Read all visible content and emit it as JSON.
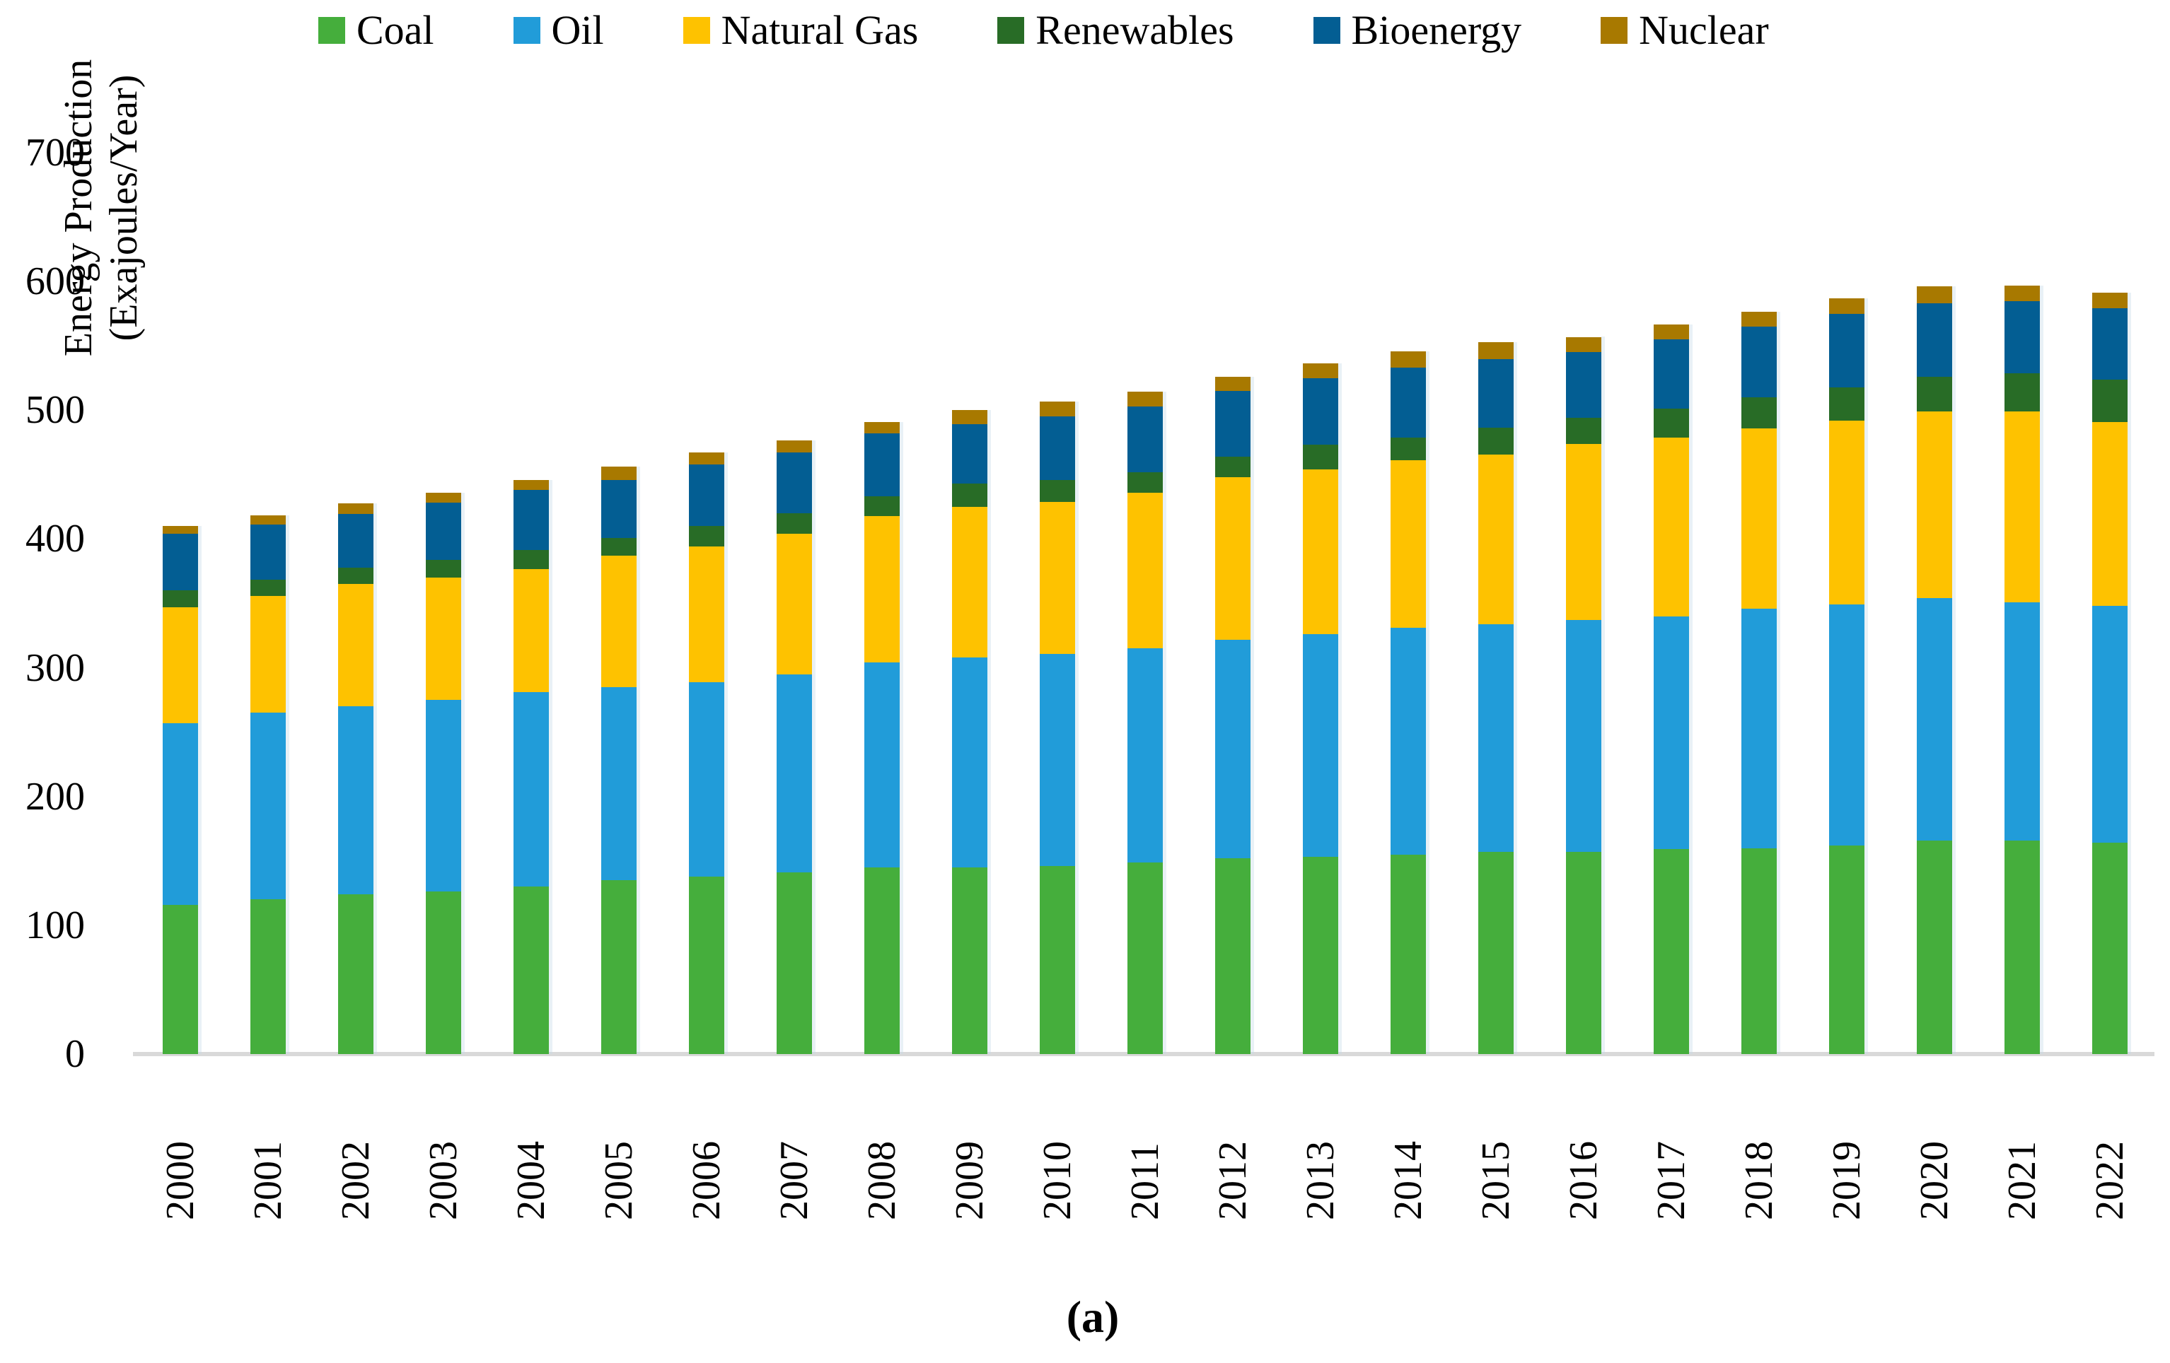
{
  "figure": {
    "caption": "(a)",
    "y_axis_title_line1": "Energy Production",
    "y_axis_title_line2": "(Exajoules/Year)"
  },
  "chart_data": {
    "type": "bar",
    "stacked": true,
    "title": "",
    "xlabel": "",
    "ylabel": "Energy Production (Exajoules/Year)",
    "ylim": [
      0,
      700
    ],
    "y_ticks": [
      0,
      100,
      200,
      300,
      400,
      500,
      600,
      700
    ],
    "grid": false,
    "legend_position": "top",
    "categories": [
      2000,
      2001,
      2002,
      2003,
      2004,
      2005,
      2006,
      2007,
      2008,
      2009,
      2010,
      2011,
      2012,
      2013,
      2014,
      2015,
      2016,
      2017,
      2018,
      2019,
      2020,
      2021,
      2022
    ],
    "series": [
      {
        "name": "Coal",
        "color": "#45AE3C",
        "values": [
          116,
          120,
          124,
          126,
          130,
          135,
          138,
          141,
          145,
          145,
          146,
          149,
          152,
          153,
          155,
          157,
          157,
          159,
          160,
          162,
          166,
          166,
          164
        ]
      },
      {
        "name": "Oil",
        "color": "#219CD9",
        "values": [
          141,
          145,
          146,
          149,
          151,
          150,
          151,
          154,
          159,
          163,
          165,
          166,
          170,
          173,
          176,
          177,
          180,
          181,
          186,
          187,
          188,
          185,
          184
        ]
      },
      {
        "name": "Natural Gas",
        "color": "#FEC200",
        "values": [
          90,
          91,
          95,
          95,
          95.5,
          102,
          105,
          109,
          114,
          117,
          118,
          121,
          126,
          128,
          130,
          131.5,
          137,
          139,
          140,
          143,
          145,
          148,
          143
        ]
      },
      {
        "name": "Renewables",
        "color": "#286C26",
        "values": [
          13,
          12.5,
          12.5,
          13.5,
          15,
          14,
          16,
          16,
          15,
          18,
          17,
          16,
          16,
          19,
          18,
          21,
          20,
          22,
          24,
          26,
          27,
          29.5,
          33
        ]
      },
      {
        "name": "Bioenergy",
        "color": "#035E93",
        "values": [
          44,
          43,
          42,
          45,
          46.5,
          45,
          48,
          47,
          49,
          46,
          49,
          51,
          51,
          52,
          54,
          53,
          51,
          54,
          55,
          57,
          57,
          56,
          55
        ]
      },
      {
        "name": "Nuclear",
        "color": "#A87900",
        "values": [
          6,
          7,
          8,
          7.5,
          8,
          10,
          9,
          9.5,
          9,
          11,
          11.5,
          11.5,
          11,
          11.5,
          12.5,
          13.5,
          12,
          11.5,
          11.5,
          12,
          13,
          12.5,
          12.5
        ]
      }
    ]
  }
}
